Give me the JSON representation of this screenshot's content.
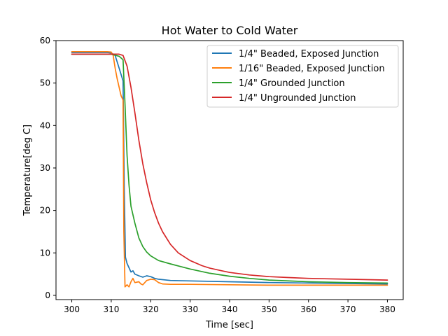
{
  "chart_data": {
    "type": "line",
    "title": "Hot Water to Cold Water",
    "xlabel": "Time [sec]",
    "ylabel": "Temperature[deg C]",
    "xlim": [
      296,
      384
    ],
    "ylim": [
      -1,
      60
    ],
    "xticks": [
      300,
      310,
      320,
      330,
      340,
      350,
      360,
      370,
      380
    ],
    "yticks": [
      0,
      10,
      20,
      30,
      40,
      50,
      60
    ],
    "grid": false,
    "legend_position": "top-right",
    "series": [
      {
        "name": "1/4\" Beaded, Exposed Junction",
        "color": "#1f77b4",
        "x": [
          300,
          305,
          309,
          310,
          311,
          312,
          312.5,
          313,
          313.3,
          313.6,
          314,
          314.5,
          315,
          315.5,
          316,
          317,
          318,
          319,
          320,
          321,
          322,
          325,
          330,
          340,
          350,
          360,
          370,
          380
        ],
        "y": [
          57.2,
          57.2,
          57.2,
          57.1,
          56.5,
          53.5,
          52,
          50.5,
          25,
          9,
          7.5,
          6.5,
          5.5,
          5.8,
          5,
          4.6,
          4.3,
          4.6,
          4.4,
          4.0,
          3.8,
          3.5,
          3.4,
          3.2,
          3.0,
          2.9,
          2.8,
          2.7
        ]
      },
      {
        "name": "1/16\" Beaded, Exposed Junction",
        "color": "#ff7f0e",
        "x": [
          300,
          305,
          309,
          310,
          310.5,
          311,
          311.5,
          312,
          312.5,
          313,
          313.2,
          313.5,
          314,
          314.5,
          315,
          315.5,
          316,
          317,
          317.5,
          318,
          319,
          320,
          321,
          322,
          323,
          325,
          330,
          340,
          350,
          360,
          370,
          380
        ],
        "y": [
          57.4,
          57.4,
          57.4,
          57.3,
          56.5,
          53.5,
          51,
          49,
          47,
          46,
          15,
          2.0,
          2.5,
          2.0,
          3.2,
          4.0,
          3.0,
          3.2,
          2.7,
          2.5,
          3.5,
          3.8,
          3.7,
          3.0,
          2.7,
          2.6,
          2.6,
          2.5,
          2.4,
          2.4,
          2.4,
          2.4
        ]
      },
      {
        "name": "1/4\" Grounded Junction",
        "color": "#2ca02c",
        "x": [
          300,
          305,
          310,
          312,
          313,
          313.5,
          314,
          314.5,
          315,
          315.5,
          316,
          317,
          318,
          319,
          320,
          322,
          325,
          330,
          335,
          340,
          345,
          350,
          360,
          370,
          380
        ],
        "y": [
          56.8,
          56.8,
          56.8,
          56.3,
          55.5,
          45,
          33,
          26,
          21,
          19,
          17,
          13.5,
          11.5,
          10.2,
          9.3,
          8.2,
          7.4,
          6.2,
          5.2,
          4.5,
          4.0,
          3.6,
          3.2,
          3.0,
          2.9
        ]
      },
      {
        "name": "1/4\" Ungrounded Junction",
        "color": "#d62728",
        "x": [
          300,
          305,
          310,
          312,
          313,
          314,
          315,
          316,
          317,
          318,
          319,
          320,
          321,
          322,
          323,
          325,
          327,
          330,
          333,
          335,
          338,
          340,
          345,
          350,
          355,
          360,
          365,
          370,
          375,
          380
        ],
        "y": [
          56.8,
          56.8,
          56.8,
          56.8,
          56.5,
          54,
          49,
          43,
          36.5,
          31,
          26.5,
          22.5,
          19.5,
          17,
          15,
          12,
          10,
          8.2,
          7.0,
          6.4,
          5.8,
          5.4,
          4.8,
          4.4,
          4.2,
          4.0,
          3.9,
          3.8,
          3.7,
          3.6
        ]
      }
    ]
  }
}
